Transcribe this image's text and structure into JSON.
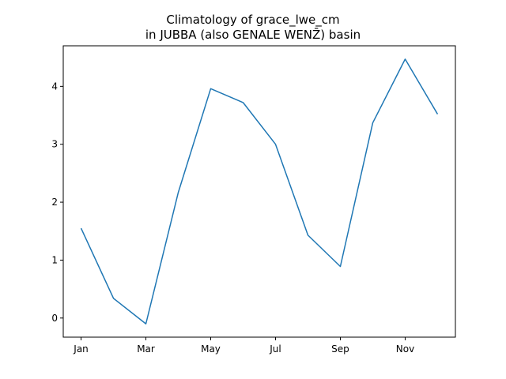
{
  "chart_data": {
    "type": "line",
    "title_line1": "Climatology of grace_lwe_cm",
    "title_line2": "in JUBBA (also GENALE WENZ̄) basin",
    "xlabel": "",
    "ylabel": "",
    "categories": [
      "Jan",
      "Feb",
      "Mar",
      "Apr",
      "May",
      "Jun",
      "Jul",
      "Aug",
      "Sep",
      "Oct",
      "Nov",
      "Dec"
    ],
    "x_tick_labels": [
      "Jan",
      "Mar",
      "May",
      "Jul",
      "Sep",
      "Nov"
    ],
    "series": [
      {
        "values": [
          1.55,
          0.34,
          -0.1,
          2.17,
          3.96,
          3.72,
          3.0,
          1.43,
          0.89,
          3.37,
          4.47,
          3.52
        ],
        "color": "#1f77b4"
      }
    ],
    "y_ticks": [
      0,
      1,
      2,
      3,
      4
    ],
    "ylim": [
      -0.33,
      4.7
    ],
    "grid": false
  }
}
